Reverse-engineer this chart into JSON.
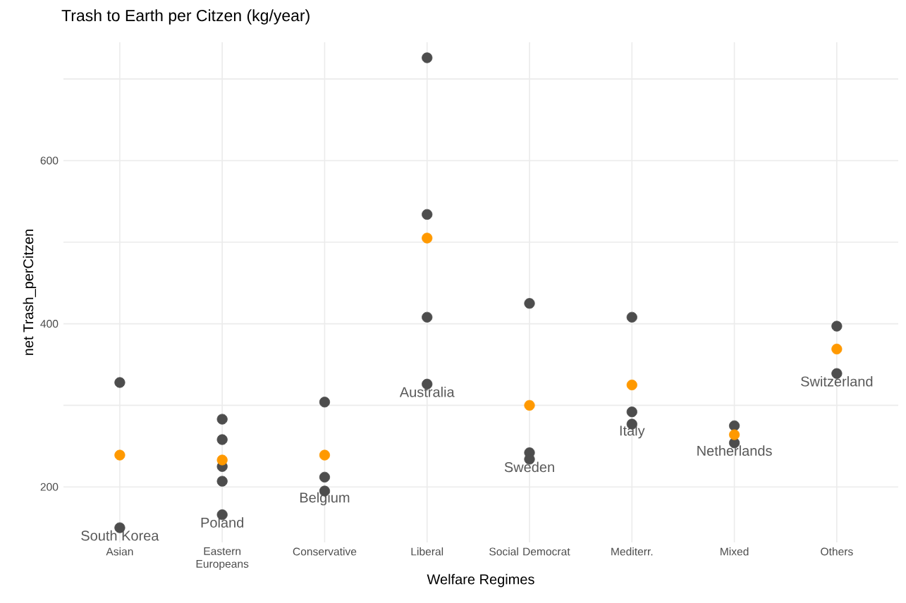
{
  "chart_data": {
    "type": "scatter",
    "title": "Trash to Earth per Citzen (kg/year)",
    "xlabel": "Welfare Regimes",
    "ylabel": "net Trash_perCitzen",
    "categories": [
      "Asian",
      "Eastern Europeans",
      "Conservative",
      "Liberal",
      "Social Democrat",
      "Mediterr.",
      "Mixed",
      "Others"
    ],
    "series": [
      {
        "color": "#4d4d4d",
        "x": [
          "Asian",
          "Asian",
          "Eastern Europeans",
          "Eastern Europeans",
          "Eastern Europeans",
          "Eastern Europeans",
          "Eastern Europeans",
          "Conservative",
          "Conservative",
          "Conservative",
          "Conservative",
          "Liberal",
          "Liberal",
          "Liberal",
          "Liberal",
          "Social Democrat",
          "Social Democrat",
          "Social Democrat",
          "Mediterr.",
          "Mediterr.",
          "Mediterr.",
          "Mediterr.",
          "Mixed",
          "Mixed",
          "Others",
          "Others"
        ],
        "values": [
          328,
          150,
          283,
          258,
          225,
          207,
          166,
          304,
          null,
          212,
          195,
          726,
          534,
          408,
          326,
          425,
          242,
          234,
          408,
          null,
          292,
          277,
          275,
          254,
          397,
          339
        ]
      },
      {
        "color": "#ff9900",
        "x": [
          "Asian",
          "Eastern Europeans",
          "Conservative",
          "Liberal",
          "Social Democrat",
          "Mediterr.",
          "Mixed",
          "Others"
        ],
        "values": [
          239,
          233,
          239,
          505,
          300,
          325,
          264,
          369
        ]
      }
    ],
    "annotations": [
      {
        "text": "South Korea",
        "x": "Asian",
        "y": 150
      },
      {
        "text": "Poland",
        "x": "Eastern Europeans",
        "y": 166
      },
      {
        "text": "Belgium",
        "x": "Conservative",
        "y": 195
      },
      {
        "text": "Australia",
        "x": "Liberal",
        "y": 326
      },
      {
        "text": "Sweden",
        "x": "Social Democrat",
        "y": 234
      },
      {
        "text": "Italy",
        "x": "Mediterr.",
        "y": 277
      },
      {
        "text": "Netherlands",
        "x": "Mixed",
        "y": 254
      },
      {
        "text": "Switzerland",
        "x": "Others",
        "y": 339
      }
    ],
    "ylim": [
      132,
      745
    ],
    "yticks": [
      200,
      {
        "value": 300,
        "label": null
      },
      400,
      {
        "value": 500,
        "label": null
      },
      600,
      {
        "value": 700,
        "label": null
      }
    ],
    "grid": true,
    "marker": "circle"
  }
}
